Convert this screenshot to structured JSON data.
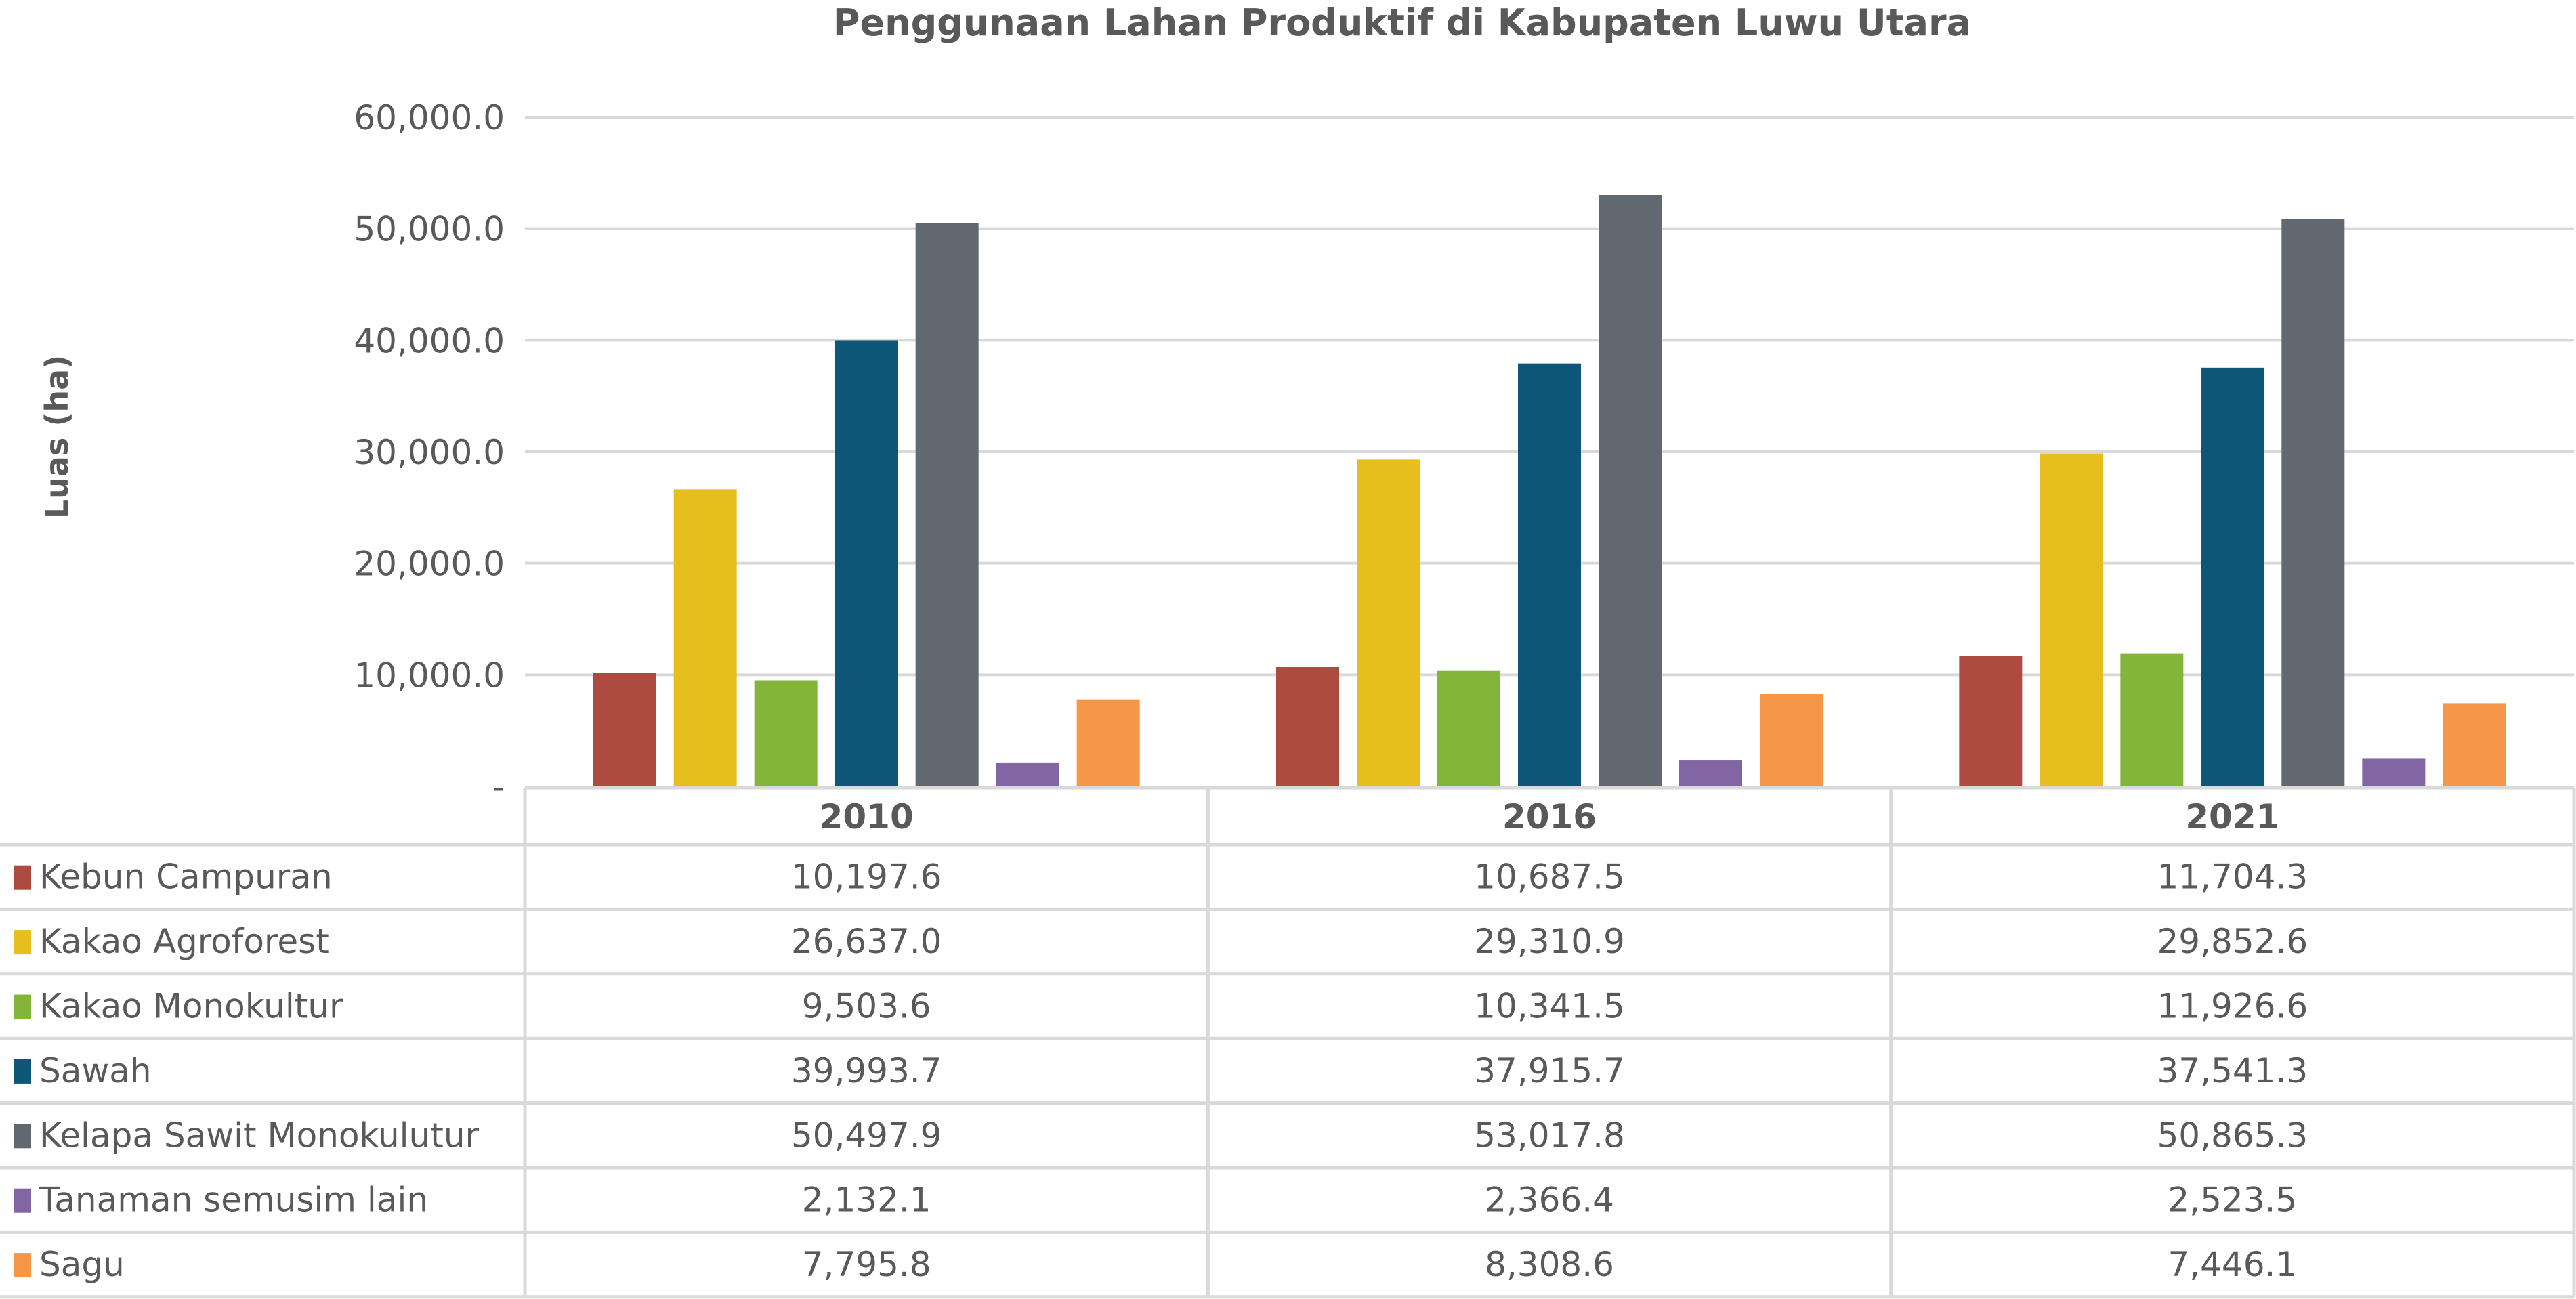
{
  "chart_data": {
    "type": "bar",
    "title": "Penggunaan Lahan Produktif di Kabupaten Luwu Utara",
    "xlabel": "",
    "ylabel": "Luas (ha)",
    "ylim": [
      0,
      60000
    ],
    "yticks": [
      0,
      10000,
      20000,
      30000,
      40000,
      50000,
      60000
    ],
    "ytick_labels": [
      "-",
      "10,000.0",
      "20,000.0",
      "30,000.0",
      "40,000.0",
      "50,000.0",
      "60,000.0"
    ],
    "grid": true,
    "legend": "data-table-below",
    "categories": [
      "2010",
      "2016",
      "2021"
    ],
    "series": [
      {
        "name": "Kebun Campuran",
        "color": "#AD4B41",
        "values": [
          10197.6,
          10687.5,
          11704.3
        ],
        "labels": [
          "10,197.6",
          "10,687.5",
          "11,704.3"
        ]
      },
      {
        "name": "Kakao Agroforest",
        "color": "#E6BF1E",
        "values": [
          26637.0,
          29310.9,
          29852.6
        ],
        "labels": [
          "26,637.0",
          "29,310.9",
          "29,852.6"
        ]
      },
      {
        "name": "Kakao Monokultur",
        "color": "#84B53B",
        "values": [
          9503.6,
          10341.5,
          11926.6
        ],
        "labels": [
          "9,503.6",
          "10,341.5",
          "11,926.6"
        ]
      },
      {
        "name": "Sawah",
        "color": "#0E5677",
        "values": [
          39993.7,
          37915.7,
          37541.3
        ],
        "labels": [
          "39,993.7",
          "37,915.7",
          "37,541.3"
        ]
      },
      {
        "name": "Kelapa Sawit Monokulutur",
        "color": "#616870",
        "values": [
          50497.9,
          53017.8,
          50865.3
        ],
        "labels": [
          "50,497.9",
          "53,017.8",
          "50,865.3"
        ]
      },
      {
        "name": "Tanaman semusim lain",
        "color": "#8166A3",
        "values": [
          2132.1,
          2366.4,
          2523.5
        ],
        "labels": [
          "2,132.1",
          "2,366.4",
          "2,523.5"
        ]
      },
      {
        "name": "Sagu",
        "color": "#F69647",
        "values": [
          7795.8,
          8308.6,
          7446.1
        ],
        "labels": [
          "7,795.8",
          "8,308.6",
          "7,446.1"
        ]
      }
    ]
  }
}
